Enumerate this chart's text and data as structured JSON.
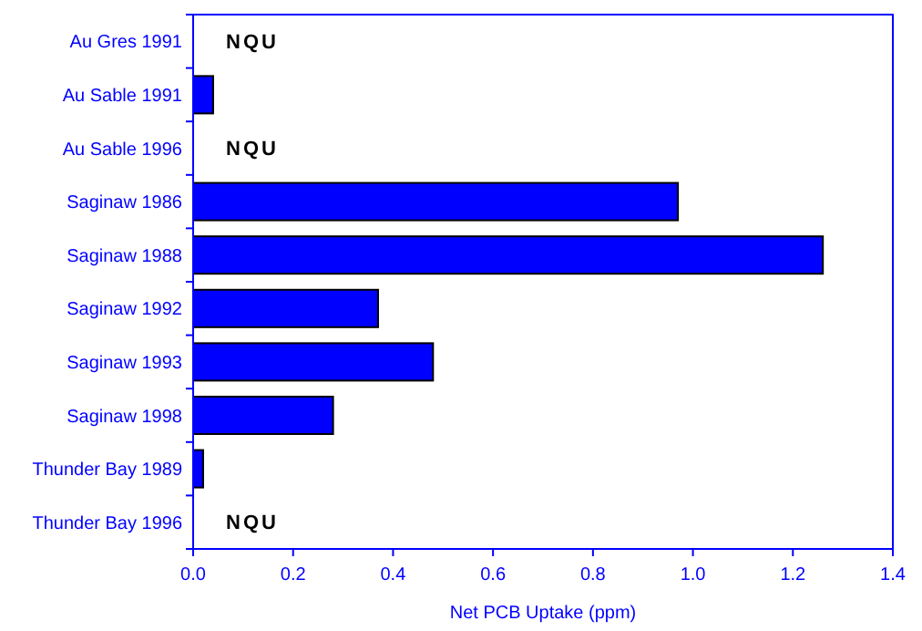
{
  "chart_data": {
    "type": "bar",
    "orientation": "horizontal",
    "xlabel": "Net PCB Uptake (ppm)",
    "categories": [
      "Au Gres 1991",
      "Au Sable 1991",
      "Au Sable 1996",
      "Saginaw 1986",
      "Saginaw 1988",
      "Saginaw 1992",
      "Saginaw 1993",
      "Saginaw 1998",
      "Thunder Bay 1989",
      "Thunder Bay 1996"
    ],
    "values": [
      null,
      0.04,
      null,
      0.97,
      1.26,
      0.37,
      0.48,
      0.28,
      0.02,
      null
    ],
    "color": "#0000ff",
    "xlim": [
      0,
      1.4
    ],
    "xticks": [
      {
        "value": 0,
        "label": "0.0"
      },
      0.2,
      0.4,
      0.6,
      0.8,
      {
        "value": 1,
        "label": "1.0"
      },
      1.2,
      1.4
    ],
    "grid": false,
    "annotations": [
      "NQU",
      "NQU",
      "NQU"
    ]
  }
}
